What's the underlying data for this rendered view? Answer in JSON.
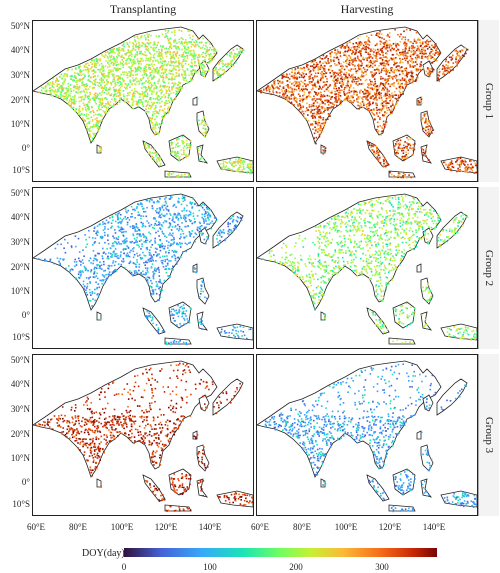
{
  "columns": [
    "Transplanting",
    "Harvesting"
  ],
  "rows": [
    "Group 1",
    "Group 2",
    "Group 3"
  ],
  "lat_ticks": [
    "50°N",
    "40°N",
    "30°N",
    "20°N",
    "10°N",
    "0°",
    "10°S"
  ],
  "lon_ticks": [
    "60°E",
    "80°E",
    "100°E",
    "120°E",
    "140°E"
  ],
  "legend": {
    "title": "DOY(day)",
    "ticks": [
      "0",
      "100",
      "200",
      "300"
    ],
    "colors": [
      "#30123b",
      "#4662d7",
      "#36aaf9",
      "#1ae4b6",
      "#72fe5e",
      "#c8ef34",
      "#faba39",
      "#f66b19",
      "#ca2a04",
      "#7a0403"
    ]
  },
  "panel_palettes": {
    "g1_transplanting": [
      "#72fe5e",
      "#a4fc3c",
      "#c8ef34",
      "#e1dd37",
      "#faba39",
      "#46f884"
    ],
    "g1_harvesting": [
      "#f66b19",
      "#ca2a04",
      "#e4460a",
      "#faba39",
      "#a31e02",
      "#f68f28"
    ],
    "g2_transplanting": [
      "#36aaf9",
      "#4662d7",
      "#1ae4b6",
      "#2fb9ef",
      "#3e9bfe",
      "#4686fb"
    ],
    "g2_harvesting": [
      "#72fe5e",
      "#a4fc3c",
      "#c8ef34",
      "#46f884",
      "#1ae4b6",
      "#e1dd37"
    ],
    "g3_transplanting": [
      "#ca2a04",
      "#a31e02",
      "#7a0403",
      "#e4460a",
      "#f66b19",
      "#b92502"
    ],
    "g3_harvesting": [
      "#36aaf9",
      "#4686fb",
      "#4662d7",
      "#2fb9ef",
      "#1ae4b6",
      "#3e9bfe"
    ]
  }
}
